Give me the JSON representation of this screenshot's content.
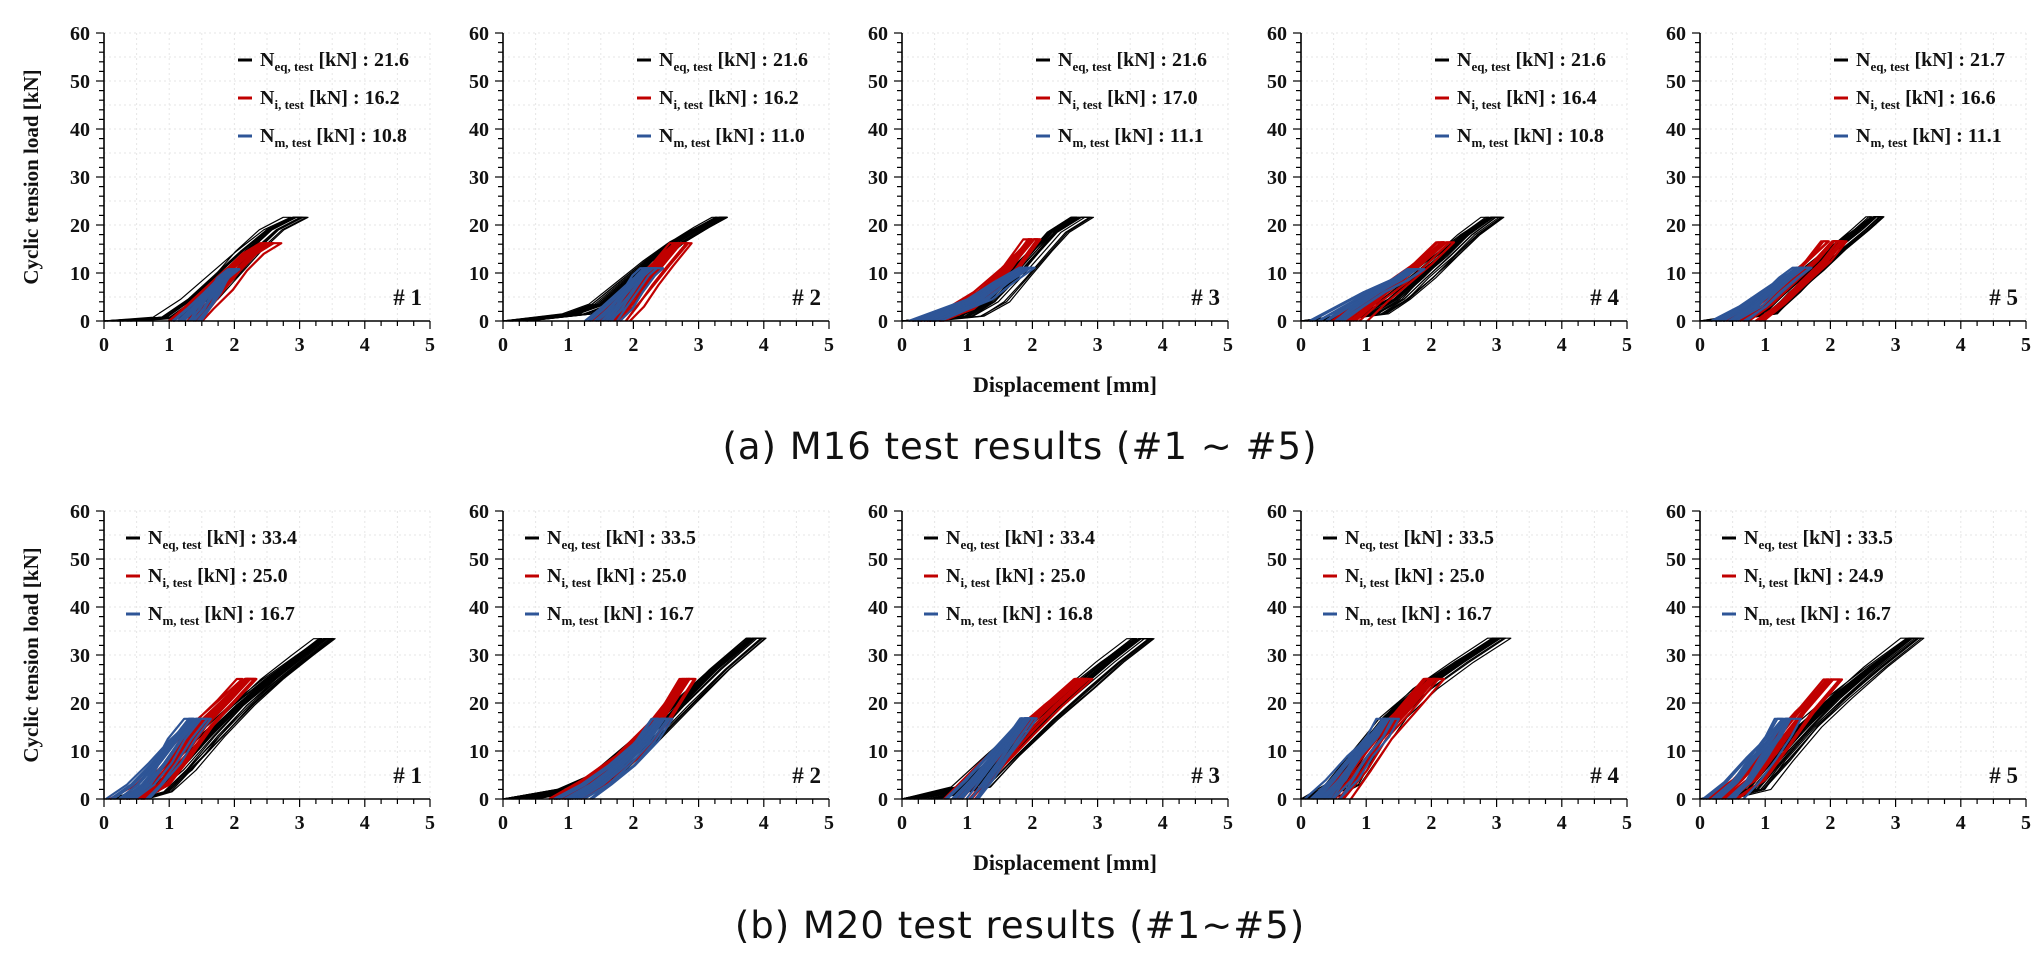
{
  "figure": {
    "caption_a": "(a) M16 test results (#1 ~ #5)",
    "caption_b": "(b) M20 test results (#1~#5)"
  },
  "chart_data": [
    {
      "type": "line",
      "group": "M16",
      "panel_label": "# 1",
      "ylabel": "Cyclic tension load [kN]",
      "xlabel": "Displacement [mm]",
      "xlim": [
        0,
        5
      ],
      "ylim": [
        0,
        60
      ],
      "xticks": [
        "0",
        "1",
        "2",
        "3",
        "4",
        "5"
      ],
      "yticks": [
        "0",
        "10",
        "20",
        "30",
        "40",
        "50",
        "60"
      ],
      "grid": true,
      "legend_position": "top-right",
      "legend": [
        {
          "sym": "N",
          "sub": "eq, test",
          "text": " [kN] : 21.6",
          "color": "#000000"
        },
        {
          "sym": "N",
          "sub": "i, test",
          "text": " [kN] : 16.2",
          "color": "#c00000"
        },
        {
          "sym": "N",
          "sub": "m, test",
          "text": " [kN] : 10.8",
          "color": "#2e5597"
        }
      ],
      "series": [
        {
          "color": "#000000",
          "peak": 21.6,
          "x": [
            0.0,
            0.9,
            1.3,
            1.7,
            2.1,
            2.5,
            2.9
          ],
          "y": [
            0,
            0.8,
            4.5,
            9.5,
            14.5,
            19,
            21.6
          ]
        },
        {
          "color": "#c00000",
          "peak": 16.2,
          "x": [
            1.1,
            1.3,
            1.6,
            1.9,
            2.2,
            2.5
          ],
          "y": [
            0,
            2.5,
            6.5,
            10.5,
            14,
            16.2
          ]
        },
        {
          "color": "#2e5597",
          "peak": 10.8,
          "x": [
            1.15,
            1.35,
            1.6,
            1.8,
            2.0
          ],
          "y": [
            0,
            2.5,
            6,
            9,
            10.8
          ]
        }
      ]
    },
    {
      "type": "line",
      "group": "M16",
      "panel_label": "# 2",
      "ylabel": "",
      "xlabel": "",
      "xlim": [
        0,
        5
      ],
      "ylim": [
        0,
        60
      ],
      "xticks": [
        "0",
        "1",
        "2",
        "3",
        "4",
        "5"
      ],
      "yticks": [
        "0",
        "10",
        "20",
        "30",
        "40",
        "50",
        "60"
      ],
      "grid": true,
      "legend_position": "top-right",
      "legend": [
        {
          "sym": "N",
          "sub": "eq, test",
          "text": " [kN] : 21.6",
          "color": "#000000"
        },
        {
          "sym": "N",
          "sub": "i, test",
          "text": " [kN] : 16.2",
          "color": "#c00000"
        },
        {
          "sym": "N",
          "sub": "m, test",
          "text": " [kN] : 11.0",
          "color": "#2e5597"
        }
      ],
      "series": [
        {
          "color": "#000000",
          "peak": 21.6,
          "x": [
            0.0,
            1.0,
            1.4,
            1.8,
            2.2,
            2.6,
            3.0,
            3.3
          ],
          "y": [
            0,
            1.5,
            3.5,
            8,
            12.5,
            16.5,
            19.5,
            21.6
          ]
        },
        {
          "color": "#c00000",
          "peak": 16.2,
          "x": [
            1.45,
            1.7,
            2.0,
            2.3,
            2.65
          ],
          "y": [
            0,
            3,
            7.5,
            11.5,
            16.2
          ]
        },
        {
          "color": "#2e5597",
          "peak": 11.0,
          "x": [
            1.4,
            1.6,
            1.85,
            2.1,
            2.25
          ],
          "y": [
            0,
            2.5,
            6,
            9.5,
            11.0
          ]
        }
      ]
    },
    {
      "type": "line",
      "group": "M16",
      "panel_label": "# 3",
      "ylabel": "",
      "xlabel": "",
      "xlim": [
        0,
        5
      ],
      "ylim": [
        0,
        60
      ],
      "xticks": [
        "0",
        "1",
        "2",
        "3",
        "4",
        "5"
      ],
      "yticks": [
        "0",
        "10",
        "20",
        "30",
        "40",
        "50",
        "60"
      ],
      "grid": true,
      "legend_position": "top-right",
      "legend": [
        {
          "sym": "N",
          "sub": "eq, test",
          "text": " [kN] : 21.6",
          "color": "#000000"
        },
        {
          "sym": "N",
          "sub": "i, test",
          "text": " [kN] : 17.0",
          "color": "#c00000"
        },
        {
          "sym": "N",
          "sub": "m, test",
          "text": " [kN] : 11.1",
          "color": "#2e5597"
        }
      ],
      "series": [
        {
          "color": "#000000",
          "peak": 21.6,
          "x": [
            0.0,
            0.8,
            1.2,
            1.6,
            2.0,
            2.3,
            2.7
          ],
          "y": [
            0,
            1,
            4,
            9,
            14.5,
            18.5,
            21.6
          ]
        },
        {
          "color": "#c00000",
          "peak": 17.0,
          "x": [
            0.3,
            0.8,
            1.2,
            1.6,
            2.0
          ],
          "y": [
            0,
            2.5,
            6,
            11,
            17.0
          ]
        },
        {
          "color": "#2e5597",
          "peak": 11.1,
          "x": [
            0.1,
            0.6,
            1.0,
            1.4,
            1.8
          ],
          "y": [
            0,
            2.5,
            4.5,
            8,
            11.1
          ]
        }
      ]
    },
    {
      "type": "line",
      "group": "M16",
      "panel_label": "# 4",
      "ylabel": "",
      "xlabel": "",
      "xlim": [
        0,
        5
      ],
      "ylim": [
        0,
        60
      ],
      "xticks": [
        "0",
        "1",
        "2",
        "3",
        "4",
        "5"
      ],
      "yticks": [
        "0",
        "10",
        "20",
        "30",
        "40",
        "50",
        "60"
      ],
      "grid": true,
      "legend_position": "top-right",
      "legend": [
        {
          "sym": "N",
          "sub": "eq, test",
          "text": " [kN] : 21.6",
          "color": "#000000"
        },
        {
          "sym": "N",
          "sub": "i, test",
          "text": " [kN] : 16.4",
          "color": "#c00000"
        },
        {
          "sym": "N",
          "sub": "m, test",
          "text": " [kN] : 10.8",
          "color": "#2e5597"
        }
      ],
      "series": [
        {
          "color": "#000000",
          "peak": 21.6,
          "x": [
            0.0,
            0.9,
            1.3,
            1.7,
            2.1,
            2.5,
            2.9
          ],
          "y": [
            0,
            1.5,
            4.5,
            9,
            13.5,
            18,
            21.6
          ]
        },
        {
          "color": "#c00000",
          "peak": 16.4,
          "x": [
            0.6,
            1.0,
            1.4,
            1.8,
            2.2
          ],
          "y": [
            0,
            4,
            8,
            12,
            16.4
          ]
        },
        {
          "color": "#2e5597",
          "peak": 10.8,
          "x": [
            0.2,
            0.6,
            1.0,
            1.4,
            1.7
          ],
          "y": [
            0,
            3,
            6,
            8.5,
            10.8
          ]
        }
      ]
    },
    {
      "type": "line",
      "group": "M16",
      "panel_label": "# 5",
      "ylabel": "",
      "xlabel": "",
      "xlim": [
        0,
        5
      ],
      "ylim": [
        0,
        60
      ],
      "xticks": [
        "0",
        "1",
        "2",
        "3",
        "4",
        "5"
      ],
      "yticks": [
        "0",
        "10",
        "20",
        "30",
        "40",
        "50",
        "60"
      ],
      "grid": true,
      "legend_position": "top-right",
      "legend": [
        {
          "sym": "N",
          "sub": "eq, test",
          "text": " [kN] : 21.7",
          "color": "#000000"
        },
        {
          "sym": "N",
          "sub": "i, test",
          "text": " [kN] : 16.6",
          "color": "#c00000"
        },
        {
          "sym": "N",
          "sub": "m, test",
          "text": " [kN] : 11.1",
          "color": "#2e5597"
        }
      ],
      "series": [
        {
          "color": "#000000",
          "peak": 21.7,
          "x": [
            0.0,
            0.8,
            1.2,
            1.6,
            2.0,
            2.4,
            2.65
          ],
          "y": [
            0,
            1.5,
            6,
            10.5,
            15,
            19,
            21.7
          ]
        },
        {
          "color": "#c00000",
          "peak": 16.6,
          "x": [
            0.5,
            0.9,
            1.3,
            1.7,
            2.0
          ],
          "y": [
            0,
            3.5,
            8,
            12.5,
            16.6
          ]
        },
        {
          "color": "#2e5597",
          "peak": 11.1,
          "x": [
            0.3,
            0.7,
            1.0,
            1.3,
            1.55
          ],
          "y": [
            0,
            3,
            6,
            9,
            11.1
          ]
        }
      ]
    },
    {
      "type": "line",
      "group": "M20",
      "panel_label": "# 1",
      "ylabel": "Cyclic tension load [kN]",
      "xlabel": "Displacement [mm]",
      "xlim": [
        0,
        5
      ],
      "ylim": [
        0,
        60
      ],
      "xticks": [
        "0",
        "1",
        "2",
        "3",
        "4",
        "5"
      ],
      "yticks": [
        "0",
        "10",
        "20",
        "30",
        "40",
        "50",
        "60"
      ],
      "grid": true,
      "legend_position": "top-left",
      "legend": [
        {
          "sym": "N",
          "sub": "eq, test",
          "text": " [kN] : 33.4",
          "color": "#000000"
        },
        {
          "sym": "N",
          "sub": "i, test",
          "text": " [kN] : 25.0",
          "color": "#c00000"
        },
        {
          "sym": "N",
          "sub": "m, test",
          "text": " [kN] : 16.7",
          "color": "#2e5597"
        }
      ],
      "series": [
        {
          "color": "#000000",
          "peak": 33.4,
          "x": [
            0.2,
            0.6,
            1.0,
            1.5,
            2.0,
            2.5,
            3.0,
            3.35
          ],
          "y": [
            0,
            1.5,
            6,
            13,
            19.5,
            25,
            30,
            33.4
          ]
        },
        {
          "color": "#c00000",
          "peak": 25.0,
          "x": [
            0.2,
            0.6,
            1.0,
            1.4,
            1.8,
            2.15
          ],
          "y": [
            0,
            3,
            9,
            15.5,
            20.5,
            25.0
          ]
        },
        {
          "color": "#2e5597",
          "peak": 16.7,
          "x": [
            0.2,
            0.5,
            0.8,
            1.1,
            1.4
          ],
          "y": [
            0,
            3,
            7.5,
            12.5,
            16.7
          ]
        }
      ]
    },
    {
      "type": "line",
      "group": "M20",
      "panel_label": "# 2",
      "ylabel": "",
      "xlabel": "",
      "xlim": [
        0,
        5
      ],
      "ylim": [
        0,
        60
      ],
      "xticks": [
        "0",
        "1",
        "2",
        "3",
        "4",
        "5"
      ],
      "yticks": [
        "0",
        "10",
        "20",
        "30",
        "40",
        "50",
        "60"
      ],
      "grid": true,
      "legend_position": "top-left",
      "legend": [
        {
          "sym": "N",
          "sub": "eq, test",
          "text": " [kN] : 33.5",
          "color": "#000000"
        },
        {
          "sym": "N",
          "sub": "i, test",
          "text": " [kN] : 25.0",
          "color": "#c00000"
        },
        {
          "sym": "N",
          "sub": "m, test",
          "text": " [kN] : 16.7",
          "color": "#2e5597"
        }
      ],
      "series": [
        {
          "color": "#000000",
          "peak": 33.5,
          "x": [
            0.0,
            0.9,
            1.4,
            2.0,
            2.6,
            3.2,
            3.8
          ],
          "y": [
            0,
            2,
            5,
            12,
            19.5,
            27,
            33.5
          ]
        },
        {
          "color": "#c00000",
          "peak": 25.0,
          "x": [
            0.8,
            1.3,
            1.8,
            2.3,
            2.8
          ],
          "y": [
            0,
            4,
            9,
            16,
            25.0
          ]
        },
        {
          "color": "#2e5597",
          "peak": 16.7,
          "x": [
            0.9,
            1.3,
            1.7,
            2.1,
            2.4
          ],
          "y": [
            0,
            3,
            7,
            12,
            16.7
          ]
        }
      ]
    },
    {
      "type": "line",
      "group": "M20",
      "panel_label": "# 3",
      "ylabel": "",
      "xlabel": "",
      "xlim": [
        0,
        5
      ],
      "ylim": [
        0,
        60
      ],
      "xticks": [
        "0",
        "1",
        "2",
        "3",
        "4",
        "5"
      ],
      "yticks": [
        "0",
        "10",
        "20",
        "30",
        "40",
        "50",
        "60"
      ],
      "grid": true,
      "legend_position": "top-left",
      "legend": [
        {
          "sym": "N",
          "sub": "eq, test",
          "text": " [kN] : 33.4",
          "color": "#000000"
        },
        {
          "sym": "N",
          "sub": "i, test",
          "text": " [kN] : 25.0",
          "color": "#c00000"
        },
        {
          "sym": "N",
          "sub": "m, test",
          "text": " [kN] : 16.8",
          "color": "#2e5597"
        }
      ],
      "series": [
        {
          "color": "#000000",
          "peak": 33.4,
          "x": [
            0.0,
            0.9,
            1.4,
            2.0,
            2.6,
            3.1,
            3.6
          ],
          "y": [
            0,
            2.5,
            9,
            16.5,
            23,
            28.5,
            33.4
          ]
        },
        {
          "color": "#c00000",
          "peak": 25.0,
          "x": [
            0.7,
            1.2,
            1.7,
            2.2,
            2.7
          ],
          "y": [
            0,
            7,
            13.5,
            19.5,
            25.0
          ]
        },
        {
          "color": "#2e5597",
          "peak": 16.8,
          "x": [
            0.7,
            1.0,
            1.3,
            1.6,
            1.85
          ],
          "y": [
            0,
            4,
            8.5,
            13,
            16.8
          ]
        }
      ]
    },
    {
      "type": "line",
      "group": "M20",
      "panel_label": "# 4",
      "ylabel": "",
      "xlabel": "",
      "xlim": [
        0,
        5
      ],
      "ylim": [
        0,
        60
      ],
      "xticks": [
        "0",
        "1",
        "2",
        "3",
        "4",
        "5"
      ],
      "yticks": [
        "0",
        "10",
        "20",
        "30",
        "40",
        "50",
        "60"
      ],
      "grid": true,
      "legend_position": "top-left",
      "legend": [
        {
          "sym": "N",
          "sub": "eq, test",
          "text": " [kN] : 33.5",
          "color": "#000000"
        },
        {
          "sym": "N",
          "sub": "i, test",
          "text": " [kN] : 25.0",
          "color": "#c00000"
        },
        {
          "sym": "N",
          "sub": "m, test",
          "text": " [kN] : 16.7",
          "color": "#2e5597"
        }
      ],
      "series": [
        {
          "color": "#000000",
          "peak": 33.5,
          "x": [
            0.0,
            0.5,
            0.9,
            1.3,
            1.8,
            2.4,
            3.0
          ],
          "y": [
            0,
            3,
            10,
            17,
            23,
            28.5,
            33.5
          ]
        },
        {
          "color": "#c00000",
          "peak": 25.0,
          "x": [
            0.3,
            0.7,
            1.1,
            1.5,
            2.0
          ],
          "y": [
            0,
            6,
            12.5,
            18,
            25.0
          ]
        },
        {
          "color": "#2e5597",
          "peak": 16.7,
          "x": [
            0.2,
            0.5,
            0.8,
            1.1,
            1.3
          ],
          "y": [
            0,
            4,
            9,
            13,
            16.7
          ]
        }
      ]
    },
    {
      "type": "line",
      "group": "M20",
      "panel_label": "# 5",
      "ylabel": "",
      "xlabel": "",
      "xlim": [
        0,
        5
      ],
      "ylim": [
        0,
        60
      ],
      "xticks": [
        "0",
        "1",
        "2",
        "3",
        "4",
        "5"
      ],
      "yticks": [
        "0",
        "10",
        "20",
        "30",
        "40",
        "50",
        "60"
      ],
      "grid": true,
      "legend_position": "top-left",
      "legend": [
        {
          "sym": "N",
          "sub": "eq, test",
          "text": " [kN] : 33.5",
          "color": "#000000"
        },
        {
          "sym": "N",
          "sub": "i, test",
          "text": " [kN] : 24.9",
          "color": "#c00000"
        },
        {
          "sym": "N",
          "sub": "m, test",
          "text": " [kN] : 16.7",
          "color": "#2e5597"
        }
      ],
      "series": [
        {
          "color": "#000000",
          "peak": 33.5,
          "x": [
            0.0,
            0.6,
            1.0,
            1.5,
            2.0,
            2.6,
            3.2
          ],
          "y": [
            0,
            2,
            8,
            15,
            21,
            27.5,
            33.5
          ]
        },
        {
          "color": "#c00000",
          "peak": 24.9,
          "x": [
            0.2,
            0.6,
            1.0,
            1.5,
            2.0
          ],
          "y": [
            0,
            4,
            10,
            18,
            24.9
          ]
        },
        {
          "color": "#2e5597",
          "peak": 16.7,
          "x": [
            0.2,
            0.5,
            0.8,
            1.1,
            1.3
          ],
          "y": [
            0,
            3.5,
            8.5,
            13,
            16.7
          ]
        }
      ]
    }
  ]
}
